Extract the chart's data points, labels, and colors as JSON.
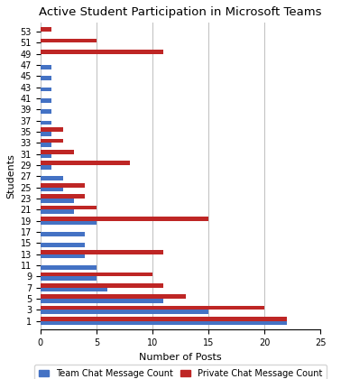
{
  "title": "Active Student Participation in Microsoft Teams",
  "xlabel": "Number of Posts",
  "ylabel": "Students",
  "students": [
    1,
    3,
    5,
    7,
    9,
    11,
    13,
    15,
    17,
    19,
    21,
    23,
    25,
    27,
    29,
    31,
    33,
    35,
    37,
    39,
    41,
    43,
    45,
    47,
    49,
    51,
    53
  ],
  "team_chat": [
    22,
    15,
    11,
    6,
    5,
    5,
    4,
    4,
    4,
    5,
    3,
    3,
    2,
    2,
    1,
    1,
    1,
    1,
    1,
    1,
    1,
    1,
    1,
    1,
    0,
    0,
    0
  ],
  "private_chat": [
    22,
    20,
    13,
    11,
    10,
    0,
    11,
    0,
    0,
    15,
    5,
    4,
    4,
    0,
    8,
    3,
    2,
    2,
    0,
    0,
    0,
    0,
    0,
    0,
    11,
    5,
    1
  ],
  "team_color": "#4472C4",
  "private_color": "#BE2625",
  "xlim": [
    0,
    25
  ],
  "xticks": [
    0,
    5,
    10,
    15,
    20,
    25
  ],
  "grid_color": "#BFBFBF",
  "background_color": "#FFFFFF",
  "legend_team": "Team Chat Message Count",
  "legend_private": "Private Chat Message Count",
  "bar_height": 0.38,
  "title_fontsize": 9.5,
  "axis_fontsize": 8,
  "tick_fontsize": 7,
  "legend_fontsize": 7
}
